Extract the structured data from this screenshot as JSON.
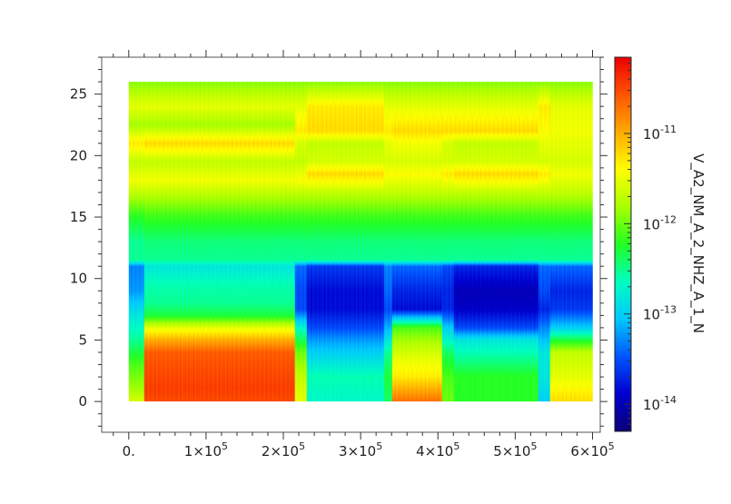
{
  "chart_data": {
    "type": "heatmap",
    "title": "",
    "xlabel": "",
    "ylabel": "",
    "zlabel": "V_A2_NM_A_2_NHZ_A_1_N",
    "xlim": [
      -35000,
      610000
    ],
    "ylim": [
      -2.5,
      28
    ],
    "x_data_range": [
      0,
      600000
    ],
    "y_data_range": [
      0,
      26
    ],
    "x_ticks": [
      {
        "value": 0,
        "label": "0."
      },
      {
        "value": 100000,
        "label": "1×10",
        "exp": "5"
      },
      {
        "value": 200000,
        "label": "2×10",
        "exp": "5"
      },
      {
        "value": 300000,
        "label": "3×10",
        "exp": "5"
      },
      {
        "value": 400000,
        "label": "4×10",
        "exp": "5"
      },
      {
        "value": 500000,
        "label": "5×10",
        "exp": "5"
      },
      {
        "value": 600000,
        "label": "6×10",
        "exp": "5"
      }
    ],
    "y_ticks": [
      {
        "value": 0,
        "label": "0"
      },
      {
        "value": 5,
        "label": "5"
      },
      {
        "value": 10,
        "label": "10"
      },
      {
        "value": 15,
        "label": "15"
      },
      {
        "value": 20,
        "label": "20"
      },
      {
        "value": 25,
        "label": "25"
      }
    ],
    "colorbar": {
      "scale": "log",
      "range": [
        5e-15,
        7e-11
      ],
      "ticks": [
        {
          "value": 1e-14,
          "label": "10",
          "exp": "-14"
        },
        {
          "value": 1e-13,
          "label": "10",
          "exp": "-13"
        },
        {
          "value": 1e-12,
          "label": "10",
          "exp": "-12"
        },
        {
          "value": 1e-11,
          "label": "10",
          "exp": "-11"
        }
      ],
      "colormap": [
        "#0a0078",
        "#0000d0",
        "#0055ff",
        "#00c8ff",
        "#00ffc0",
        "#22ff22",
        "#aaff00",
        "#ffff00",
        "#ffaa00",
        "#ff5500",
        "#ee0000"
      ]
    },
    "x_segments": [
      {
        "x0": 0,
        "x1": 20000,
        "profile": "A_edge"
      },
      {
        "x0": 20000,
        "x1": 215000,
        "profile": "A"
      },
      {
        "x0": 215000,
        "x1": 230000,
        "profile": "T1"
      },
      {
        "x0": 230000,
        "x1": 330000,
        "profile": "B"
      },
      {
        "x0": 330000,
        "x1": 340000,
        "profile": "B_mid"
      },
      {
        "x0": 340000,
        "x1": 405000,
        "profile": "C"
      },
      {
        "x0": 405000,
        "x1": 420000,
        "profile": "T2"
      },
      {
        "x0": 420000,
        "x1": 530000,
        "profile": "D"
      },
      {
        "x0": 530000,
        "x1": 545000,
        "profile": "T3"
      },
      {
        "x0": 545000,
        "x1": 600000,
        "profile": "E"
      }
    ],
    "profiles": {
      "A_edge": [
        [
          0,
          2.5e-12
        ],
        [
          1,
          1.5e-12
        ],
        [
          3,
          8e-13
        ],
        [
          5,
          3e-13
        ],
        [
          7,
          1.5e-13
        ],
        [
          9,
          6e-14
        ],
        [
          11,
          5e-14
        ],
        [
          11.5,
          3e-13
        ],
        [
          13,
          3e-13
        ],
        [
          15,
          6e-13
        ],
        [
          17,
          2e-12
        ],
        [
          18,
          3.5e-12
        ],
        [
          19.5,
          2e-12
        ],
        [
          21,
          5e-12
        ],
        [
          22.5,
          1.5e-12
        ],
        [
          24,
          3e-12
        ],
        [
          26,
          1.2e-12
        ]
      ],
      "A": [
        [
          0,
          3e-11
        ],
        [
          1,
          3.5e-11
        ],
        [
          2.5,
          3e-11
        ],
        [
          4,
          2.5e-11
        ],
        [
          5,
          1e-11
        ],
        [
          6,
          3e-12
        ],
        [
          7,
          5e-13
        ],
        [
          8,
          3e-13
        ],
        [
          9.5,
          2.5e-13
        ],
        [
          11,
          1.5e-13
        ],
        [
          11.5,
          3e-13
        ],
        [
          13,
          3.5e-13
        ],
        [
          15,
          7e-13
        ],
        [
          17,
          2e-12
        ],
        [
          18,
          3.5e-12
        ],
        [
          19.5,
          2e-12
        ],
        [
          21,
          6e-12
        ],
        [
          22.5,
          1.5e-12
        ],
        [
          24,
          3e-12
        ],
        [
          26,
          1.2e-12
        ]
      ],
      "T1": [
        [
          0,
          3e-12
        ],
        [
          2,
          2e-12
        ],
        [
          4,
          1e-12
        ],
        [
          6,
          2e-13
        ],
        [
          7.5,
          3e-14
        ],
        [
          9,
          3e-14
        ],
        [
          11,
          4e-14
        ],
        [
          11.5,
          3e-13
        ],
        [
          13,
          3.5e-13
        ],
        [
          15,
          7e-13
        ],
        [
          17,
          2e-12
        ],
        [
          18,
          4e-12
        ],
        [
          19.5,
          2e-12
        ],
        [
          21,
          2.5e-12
        ],
        [
          22,
          5e-12
        ],
        [
          24,
          3e-12
        ],
        [
          26,
          1.2e-12
        ]
      ],
      "B": [
        [
          0,
          2e-13
        ],
        [
          2,
          2.5e-13
        ],
        [
          4,
          1e-13
        ],
        [
          5,
          6e-14
        ],
        [
          6,
          3e-14
        ],
        [
          7.5,
          1.5e-14
        ],
        [
          9,
          1.5e-14
        ],
        [
          11,
          2.5e-14
        ],
        [
          11.5,
          3e-13
        ],
        [
          13,
          3.5e-13
        ],
        [
          15,
          7e-13
        ],
        [
          17,
          2e-12
        ],
        [
          18.5,
          6e-12
        ],
        [
          19.5,
          2.5e-12
        ],
        [
          21,
          2e-12
        ],
        [
          22,
          6e-12
        ],
        [
          24,
          5e-12
        ],
        [
          26,
          1.2e-12
        ]
      ],
      "B_mid": [
        [
          0,
          4e-13
        ],
        [
          2,
          5e-13
        ],
        [
          4,
          3e-13
        ],
        [
          5.5,
          1e-13
        ],
        [
          7.5,
          3e-14
        ],
        [
          9,
          4e-14
        ],
        [
          11,
          5e-14
        ],
        [
          11.5,
          3e-13
        ],
        [
          13,
          3.5e-13
        ],
        [
          15,
          7e-13
        ],
        [
          17,
          2e-12
        ],
        [
          18.5,
          4e-12
        ],
        [
          19.5,
          2.5e-12
        ],
        [
          21,
          3e-12
        ],
        [
          22,
          5e-12
        ],
        [
          24,
          3e-12
        ],
        [
          26,
          1.2e-12
        ]
      ],
      "C": [
        [
          0,
          2e-11
        ],
        [
          1,
          1e-11
        ],
        [
          2,
          5e-12
        ],
        [
          3.5,
          3e-12
        ],
        [
          5,
          1.5e-12
        ],
        [
          6,
          8e-13
        ],
        [
          7.5,
          1.5e-14
        ],
        [
          9,
          2e-14
        ],
        [
          11,
          4e-14
        ],
        [
          11.5,
          3e-13
        ],
        [
          13,
          3.5e-13
        ],
        [
          15,
          7e-13
        ],
        [
          17,
          2e-12
        ],
        [
          18.5,
          4e-12
        ],
        [
          19.5,
          2.5e-12
        ],
        [
          21,
          3.5e-12
        ],
        [
          22,
          6e-12
        ],
        [
          24,
          3e-12
        ],
        [
          26,
          1.2e-12
        ]
      ],
      "T2": [
        [
          0,
          1e-12
        ],
        [
          2,
          8e-13
        ],
        [
          4,
          4e-13
        ],
        [
          6,
          1e-13
        ],
        [
          7.5,
          2e-14
        ],
        [
          9,
          2e-14
        ],
        [
          11,
          3e-14
        ],
        [
          11.5,
          3e-13
        ],
        [
          13,
          3.5e-13
        ],
        [
          15,
          7e-13
        ],
        [
          17,
          2e-12
        ],
        [
          18.5,
          5e-12
        ],
        [
          19.5,
          2.5e-12
        ],
        [
          21,
          2.5e-12
        ],
        [
          22,
          6e-12
        ],
        [
          24,
          3e-12
        ],
        [
          26,
          1.2e-12
        ]
      ],
      "D": [
        [
          0,
          6e-13
        ],
        [
          2,
          6e-13
        ],
        [
          3.5,
          3e-13
        ],
        [
          5,
          1.5e-13
        ],
        [
          6,
          3e-14
        ],
        [
          7.5,
          1.2e-14
        ],
        [
          9,
          1e-14
        ],
        [
          11,
          2e-14
        ],
        [
          11.5,
          3e-13
        ],
        [
          13,
          3.5e-13
        ],
        [
          15,
          7e-13
        ],
        [
          17,
          2e-12
        ],
        [
          18.5,
          6e-12
        ],
        [
          19.5,
          2.5e-12
        ],
        [
          21,
          2e-12
        ],
        [
          22,
          6e-12
        ],
        [
          24,
          3e-12
        ],
        [
          26,
          1.2e-12
        ]
      ],
      "T3": [
        [
          0,
          1e-13
        ],
        [
          2,
          1.5e-13
        ],
        [
          4,
          1.5e-13
        ],
        [
          6,
          5e-14
        ],
        [
          7.5,
          2e-14
        ],
        [
          9,
          3e-14
        ],
        [
          11,
          4e-14
        ],
        [
          11.5,
          3e-13
        ],
        [
          13,
          3.5e-13
        ],
        [
          15,
          7e-13
        ],
        [
          17,
          2e-12
        ],
        [
          18.5,
          5e-12
        ],
        [
          19.5,
          2.5e-12
        ],
        [
          21,
          3e-12
        ],
        [
          22,
          4e-12
        ],
        [
          24,
          5e-12
        ],
        [
          26,
          1.2e-12
        ]
      ],
      "E": [
        [
          0,
          6e-12
        ],
        [
          2,
          3e-12
        ],
        [
          4,
          2e-12
        ],
        [
          5,
          5e-13
        ],
        [
          6,
          1e-13
        ],
        [
          7.5,
          2.5e-14
        ],
        [
          9,
          2e-14
        ],
        [
          11,
          4e-14
        ],
        [
          11.5,
          3e-13
        ],
        [
          13,
          3.5e-13
        ],
        [
          15,
          7e-13
        ],
        [
          17,
          2e-12
        ],
        [
          18.5,
          3.5e-12
        ],
        [
          19.5,
          2.5e-12
        ],
        [
          21,
          3e-12
        ],
        [
          22,
          3.5e-12
        ],
        [
          24,
          3e-12
        ],
        [
          26,
          1.2e-12
        ]
      ]
    }
  }
}
